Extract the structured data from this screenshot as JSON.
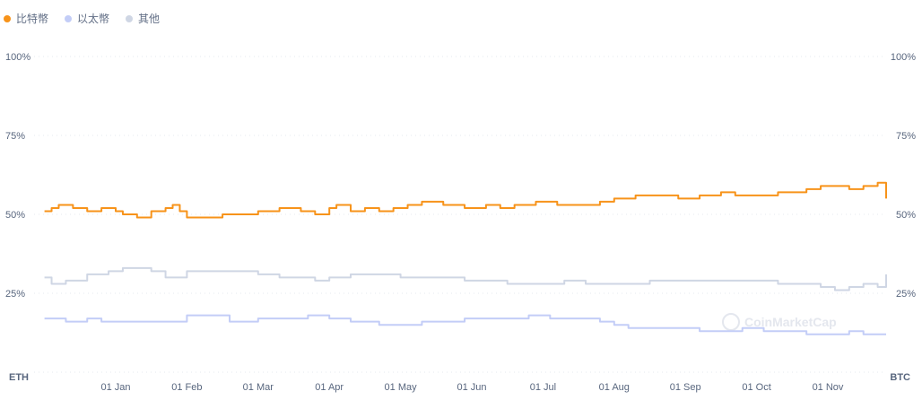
{
  "legend": {
    "items": [
      {
        "label": "比特幣",
        "color": "#f7931a"
      },
      {
        "label": "以太幣",
        "color": "#c3cdf7"
      },
      {
        "label": "其他",
        "color": "#cfd6e4"
      }
    ]
  },
  "watermark": "CoinMarketCap",
  "chart_data": {
    "type": "line",
    "x": [
      "01 Jan",
      "01 Feb",
      "01 Mar",
      "01 Apr",
      "01 May",
      "01 Jun",
      "01 Jul",
      "01 Aug",
      "01 Sep",
      "01 Oct",
      "01 Nov"
    ],
    "ylim": [
      0,
      100
    ],
    "left_axis_corner_label": "ETH",
    "right_axis_corner_label": "BTC",
    "y_ticks_left": [
      "100%",
      "75%",
      "50%",
      "25%"
    ],
    "y_ticks_right": [
      "100%",
      "75%",
      "50%",
      "25%"
    ],
    "grid": "horizontal dotted",
    "legend_position": "top-left",
    "series": [
      {
        "name": "比特幣",
        "color": "#f7931a",
        "data": [
          [
            -1.0,
            51
          ],
          [
            -0.9,
            52
          ],
          [
            -0.8,
            53
          ],
          [
            -0.6,
            52
          ],
          [
            -0.4,
            51
          ],
          [
            -0.2,
            52
          ],
          [
            0,
            51
          ],
          [
            0.1,
            50
          ],
          [
            0.3,
            49
          ],
          [
            0.5,
            51
          ],
          [
            0.7,
            52
          ],
          [
            0.8,
            53
          ],
          [
            0.9,
            51
          ],
          [
            1.0,
            49
          ],
          [
            1.2,
            49
          ],
          [
            1.5,
            50
          ],
          [
            2.0,
            51
          ],
          [
            2.3,
            52
          ],
          [
            2.6,
            51
          ],
          [
            2.8,
            50
          ],
          [
            3.0,
            52
          ],
          [
            3.1,
            53
          ],
          [
            3.3,
            51
          ],
          [
            3.5,
            52
          ],
          [
            3.7,
            51
          ],
          [
            3.9,
            52
          ],
          [
            4.1,
            53
          ],
          [
            4.3,
            54
          ],
          [
            4.6,
            53
          ],
          [
            4.9,
            52
          ],
          [
            5.2,
            53
          ],
          [
            5.4,
            52
          ],
          [
            5.6,
            53
          ],
          [
            5.9,
            54
          ],
          [
            6.2,
            53
          ],
          [
            6.5,
            53
          ],
          [
            6.8,
            54
          ],
          [
            7.0,
            55
          ],
          [
            7.3,
            56
          ],
          [
            7.6,
            56
          ],
          [
            7.9,
            55
          ],
          [
            8.2,
            56
          ],
          [
            8.5,
            57
          ],
          [
            8.7,
            56
          ],
          [
            9.0,
            56
          ],
          [
            9.3,
            57
          ],
          [
            9.5,
            57
          ],
          [
            9.7,
            58
          ],
          [
            9.9,
            59
          ],
          [
            10.1,
            59
          ],
          [
            10.3,
            58
          ],
          [
            10.5,
            59
          ],
          [
            10.7,
            60
          ],
          [
            10.9,
            58
          ],
          [
            11.1,
            56
          ],
          [
            11.3,
            55
          ]
        ]
      },
      {
        "name": "以太幣",
        "color": "#c3cdf7",
        "data": [
          [
            -1.0,
            17
          ],
          [
            -0.7,
            16
          ],
          [
            -0.4,
            17
          ],
          [
            -0.2,
            16
          ],
          [
            0,
            16
          ],
          [
            0.3,
            16
          ],
          [
            0.8,
            16
          ],
          [
            1.0,
            18
          ],
          [
            1.3,
            18
          ],
          [
            1.6,
            16
          ],
          [
            2.0,
            17
          ],
          [
            2.3,
            17
          ],
          [
            2.7,
            18
          ],
          [
            3.0,
            17
          ],
          [
            3.3,
            16
          ],
          [
            3.7,
            15
          ],
          [
            4.0,
            15
          ],
          [
            4.3,
            16
          ],
          [
            4.6,
            16
          ],
          [
            4.9,
            17
          ],
          [
            5.2,
            17
          ],
          [
            5.5,
            17
          ],
          [
            5.8,
            18
          ],
          [
            6.1,
            17
          ],
          [
            6.5,
            17
          ],
          [
            6.8,
            16
          ],
          [
            7.0,
            15
          ],
          [
            7.2,
            14
          ],
          [
            7.5,
            14
          ],
          [
            7.9,
            14
          ],
          [
            8.2,
            13
          ],
          [
            8.5,
            13
          ],
          [
            8.8,
            14
          ],
          [
            9.1,
            13
          ],
          [
            9.4,
            13
          ],
          [
            9.7,
            12
          ],
          [
            10.0,
            12
          ],
          [
            10.3,
            13
          ],
          [
            10.5,
            12
          ],
          [
            10.7,
            12
          ],
          [
            10.9,
            12
          ],
          [
            11.1,
            12
          ],
          [
            11.3,
            12
          ]
        ]
      },
      {
        "name": "其他",
        "color": "#cfd6e4",
        "data": [
          [
            -1.0,
            30
          ],
          [
            -0.9,
            28
          ],
          [
            -0.7,
            29
          ],
          [
            -0.4,
            31
          ],
          [
            -0.1,
            32
          ],
          [
            0.1,
            33
          ],
          [
            0.3,
            33
          ],
          [
            0.5,
            32
          ],
          [
            0.7,
            30
          ],
          [
            1.0,
            32
          ],
          [
            1.3,
            32
          ],
          [
            1.6,
            32
          ],
          [
            2.0,
            31
          ],
          [
            2.3,
            30
          ],
          [
            2.6,
            30
          ],
          [
            2.8,
            29
          ],
          [
            3.0,
            30
          ],
          [
            3.3,
            31
          ],
          [
            3.6,
            31
          ],
          [
            4.0,
            30
          ],
          [
            4.3,
            30
          ],
          [
            4.6,
            30
          ],
          [
            4.9,
            29
          ],
          [
            5.2,
            29
          ],
          [
            5.5,
            28
          ],
          [
            5.8,
            28
          ],
          [
            6.0,
            28
          ],
          [
            6.3,
            29
          ],
          [
            6.6,
            28
          ],
          [
            6.9,
            28
          ],
          [
            7.2,
            28
          ],
          [
            7.5,
            29
          ],
          [
            7.8,
            29
          ],
          [
            8.1,
            29
          ],
          [
            8.4,
            29
          ],
          [
            8.7,
            29
          ],
          [
            9.0,
            29
          ],
          [
            9.3,
            28
          ],
          [
            9.6,
            28
          ],
          [
            9.9,
            27
          ],
          [
            10.1,
            26
          ],
          [
            10.3,
            27
          ],
          [
            10.5,
            28
          ],
          [
            10.7,
            27
          ],
          [
            10.9,
            28
          ],
          [
            11.1,
            29
          ],
          [
            11.3,
            31
          ]
        ]
      }
    ]
  }
}
